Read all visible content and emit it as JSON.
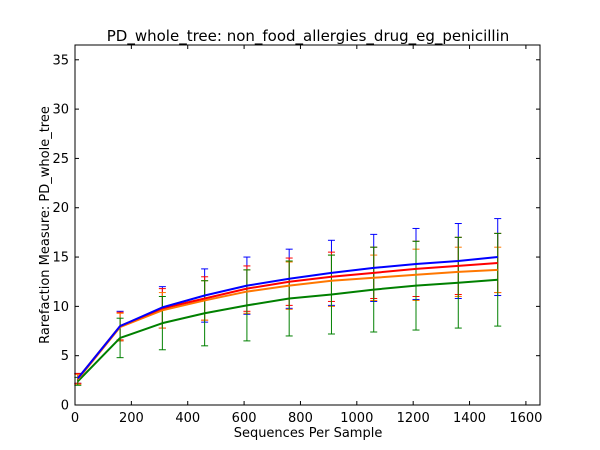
{
  "chart_data": {
    "type": "line",
    "title": "PD_whole_tree: non_food_allergies_drug_eg_penicillin",
    "xlabel": "Sequences Per Sample",
    "ylabel": "Rarefaction Measure: PD_whole_tree",
    "xlim": [
      0,
      1650
    ],
    "ylim": [
      0,
      36.5
    ],
    "xticks": [
      0,
      200,
      400,
      600,
      800,
      1000,
      1200,
      1400,
      1600
    ],
    "yticks": [
      0,
      5,
      10,
      15,
      20,
      25,
      30,
      35
    ],
    "grid": false,
    "legend": "none",
    "x": [
      10,
      160,
      310,
      460,
      610,
      760,
      910,
      1060,
      1210,
      1360,
      1500
    ],
    "series": [
      {
        "color": "#0000ff",
        "values": [
          2.7,
          8.0,
          9.9,
          11.1,
          12.1,
          12.8,
          13.4,
          13.9,
          14.3,
          14.6,
          15.0
        ],
        "err": [
          0.5,
          1.5,
          2.1,
          2.7,
          2.9,
          3.0,
          3.3,
          3.4,
          3.6,
          3.8,
          3.9
        ]
      },
      {
        "color": "#ff0000",
        "values": [
          2.7,
          8.0,
          9.8,
          10.8,
          11.8,
          12.5,
          13.0,
          13.4,
          13.8,
          14.1,
          14.4
        ],
        "err": [
          0.5,
          1.4,
          2.0,
          2.2,
          2.3,
          2.4,
          2.5,
          2.6,
          2.8,
          2.9,
          3.0
        ]
      },
      {
        "color": "#ff7700",
        "values": [
          2.6,
          7.9,
          9.6,
          10.6,
          11.5,
          12.1,
          12.6,
          12.9,
          13.2,
          13.5,
          13.7
        ],
        "err": [
          0.5,
          1.4,
          1.8,
          2.0,
          2.2,
          2.4,
          2.6,
          2.3,
          2.6,
          2.5,
          2.3
        ]
      },
      {
        "color": "#008000",
        "values": [
          2.4,
          6.8,
          8.3,
          9.3,
          10.1,
          10.8,
          11.2,
          11.7,
          12.1,
          12.4,
          12.7
        ],
        "err": [
          0.4,
          2.0,
          2.7,
          3.3,
          3.6,
          3.8,
          4.0,
          4.3,
          4.5,
          4.6,
          4.7
        ]
      }
    ]
  }
}
